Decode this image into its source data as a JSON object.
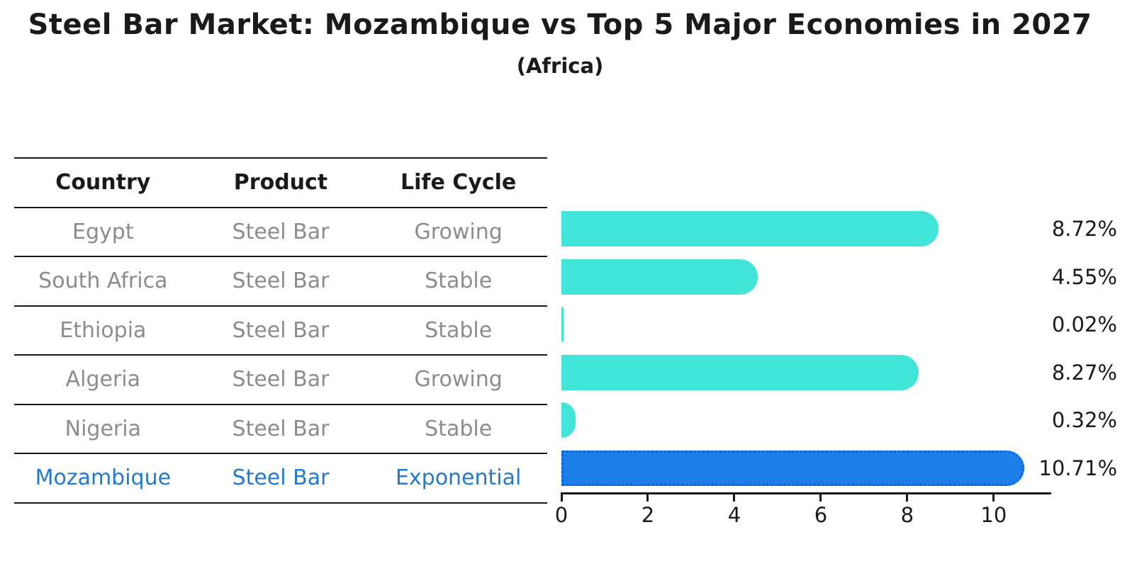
{
  "title": "Steel Bar Market: Mozambique vs Top 5 Major Economies in 2027",
  "subtitle": "(Africa)",
  "table": {
    "headers": [
      "Country",
      "Product",
      "Life Cycle"
    ],
    "rows": [
      {
        "country": "Egypt",
        "product": "Steel Bar",
        "life_cycle": "Growing",
        "highlight": false
      },
      {
        "country": "South Africa",
        "product": "Steel Bar",
        "life_cycle": "Stable",
        "highlight": false
      },
      {
        "country": "Ethiopia",
        "product": "Steel Bar",
        "life_cycle": "Stable",
        "highlight": false
      },
      {
        "country": "Algeria",
        "product": "Steel Bar",
        "life_cycle": "Growing",
        "highlight": false
      },
      {
        "country": "Nigeria",
        "product": "Steel Bar",
        "life_cycle": "Stable",
        "highlight": false
      },
      {
        "country": "Mozambique",
        "product": "Steel Bar",
        "life_cycle": "Exponential",
        "highlight": true
      }
    ]
  },
  "chart_data": {
    "type": "bar",
    "orientation": "horizontal",
    "title": "Steel Bar Market: Mozambique vs Top 5 Major Economies in 2027",
    "subtitle": "(Africa)",
    "categories": [
      "Egypt",
      "South Africa",
      "Ethiopia",
      "Algeria",
      "Nigeria",
      "Mozambique"
    ],
    "values": [
      8.72,
      4.55,
      0.02,
      8.27,
      0.32,
      10.71
    ],
    "value_labels": [
      "8.72%",
      "4.55%",
      "0.02%",
      "8.27%",
      "0.32%",
      "10.71%"
    ],
    "xticks": [
      "0",
      "2",
      "4",
      "6",
      "8",
      "10"
    ],
    "xtick_values": [
      0,
      2,
      4,
      6,
      8,
      10
    ],
    "xlim": [
      0,
      11.33
    ],
    "highlight_index": 5,
    "grid": false,
    "legend": false
  },
  "colors": {
    "bar_teal": "#40E5D8",
    "bar_blue": "#1E7FE8",
    "bar_blue_border": "#0E62D6",
    "highlight_text_blue": "#2379CF",
    "table_text_gray": "#8C8C8C",
    "text_black": "#1A1A1A"
  }
}
